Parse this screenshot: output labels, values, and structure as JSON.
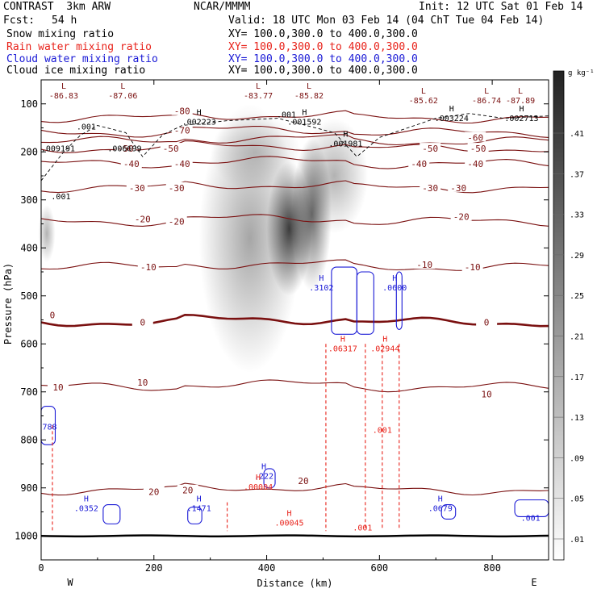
{
  "header": {
    "model": "CONTRAST  3km ARW",
    "center": "NCAR/MMMM",
    "init": "Init: 12 UTC Sat 01 Feb 14",
    "fcst_label": "Fcst:",
    "fcst_value": "54 h",
    "valid": "Valid: 18 UTC Mon 03 Feb 14 (04 ChT Tue 04 Feb 14)"
  },
  "legend": [
    {
      "label": "Snow mixing ratio",
      "xy": "XY= 100.0,300.0 to 400.0,300.0",
      "color": "#000000"
    },
    {
      "label": "Rain water mixing ratio",
      "xy": "XY= 100.0,300.0 to 400.0,300.0",
      "color": "#e8221a"
    },
    {
      "label": "Cloud water mixing ratio",
      "xy": "XY= 100.0,300.0 to 400.0,300.0",
      "color": "#1a1ad6"
    },
    {
      "label": "Cloud ice mixing ratio",
      "xy": "XY= 100.0,300.0 to 400.0,300.0",
      "color": "#000000"
    }
  ],
  "chart_data": {
    "type": "cross-section contour",
    "xlabel": "Distance (km)",
    "ylabel": "Pressure (hPa)",
    "xlim": [
      0,
      900
    ],
    "ylim": [
      1050,
      50
    ],
    "x_ticks": [
      0,
      200,
      400,
      600,
      800
    ],
    "y_ticks": [
      100,
      200,
      300,
      400,
      500,
      600,
      700,
      800,
      900,
      1000
    ],
    "x_end_labels": {
      "left": "W",
      "right": "E"
    },
    "colorbar": {
      "unit": "g kg⁻¹",
      "ticks": [
        ".41",
        ".37",
        ".33",
        ".29",
        ".25",
        ".21",
        ".17",
        ".13",
        ".09",
        ".05",
        ".01"
      ]
    },
    "temperature_contours": [
      {
        "level": -80,
        "labels": [
          {
            "x": 250,
            "p": 115,
            "text": "-80"
          }
        ]
      },
      {
        "level": -70,
        "labels": [
          {
            "x": 250,
            "p": 155,
            "text": "-70"
          }
        ]
      },
      {
        "level": -60,
        "labels": [
          {
            "x": 770,
            "p": 170,
            "text": "-60"
          }
        ]
      },
      {
        "level": -50,
        "labels": [
          {
            "x": 150,
            "p": 193,
            "text": "-50"
          },
          {
            "x": 230,
            "p": 193,
            "text": "-50"
          },
          {
            "x": 690,
            "p": 193,
            "text": "-50"
          },
          {
            "x": 775,
            "p": 193,
            "text": "-50"
          }
        ]
      },
      {
        "level": -40,
        "labels": [
          {
            "x": 160,
            "p": 225,
            "text": "-40"
          },
          {
            "x": 250,
            "p": 225,
            "text": "-40"
          },
          {
            "x": 670,
            "p": 225,
            "text": "-40"
          },
          {
            "x": 770,
            "p": 225,
            "text": "-40"
          }
        ]
      },
      {
        "level": -30,
        "labels": [
          {
            "x": 170,
            "p": 275,
            "text": "-30"
          },
          {
            "x": 240,
            "p": 275,
            "text": "-30"
          },
          {
            "x": 690,
            "p": 275,
            "text": "-30"
          },
          {
            "x": 740,
            "p": 275,
            "text": "-30"
          }
        ]
      },
      {
        "level": -20,
        "labels": [
          {
            "x": 180,
            "p": 340,
            "text": "-20"
          },
          {
            "x": 240,
            "p": 345,
            "text": "-20"
          },
          {
            "x": 745,
            "p": 335,
            "text": "-20"
          }
        ]
      },
      {
        "level": -10,
        "labels": [
          {
            "x": 190,
            "p": 440,
            "text": "-10"
          },
          {
            "x": 680,
            "p": 435,
            "text": "-10"
          },
          {
            "x": 765,
            "p": 440,
            "text": "-10"
          }
        ]
      },
      {
        "level": 0,
        "labels": [
          {
            "x": 20,
            "p": 540,
            "text": "0"
          },
          {
            "x": 180,
            "p": 555,
            "text": "0"
          },
          {
            "x": 790,
            "p": 555,
            "text": "0"
          }
        ]
      },
      {
        "level": 10,
        "labels": [
          {
            "x": 30,
            "p": 690,
            "text": "10"
          },
          {
            "x": 180,
            "p": 680,
            "text": "10"
          },
          {
            "x": 790,
            "p": 705,
            "text": "10"
          }
        ]
      },
      {
        "level": 20,
        "labels": [
          {
            "x": 200,
            "p": 908,
            "text": "20"
          },
          {
            "x": 260,
            "p": 905,
            "text": "20"
          },
          {
            "x": 465,
            "p": 885,
            "text": "20"
          }
        ]
      }
    ],
    "extrema_labels": [
      {
        "x": 40,
        "p": 85,
        "letter": "L",
        "value": "-86.83",
        "color": "#7a1010"
      },
      {
        "x": 145,
        "p": 85,
        "letter": "L",
        "value": "-87.06",
        "color": "#7a1010"
      },
      {
        "x": 385,
        "p": 85,
        "letter": "L",
        "value": "-83.77",
        "color": "#7a1010"
      },
      {
        "x": 475,
        "p": 85,
        "letter": "L",
        "value": "-85.82",
        "color": "#7a1010"
      },
      {
        "x": 678,
        "p": 95,
        "letter": "L",
        "value": "-85.62",
        "color": "#7a1010"
      },
      {
        "x": 790,
        "p": 95,
        "letter": "L",
        "value": "-86.74",
        "color": "#7a1010"
      },
      {
        "x": 850,
        "p": 95,
        "letter": "L",
        "value": "-87.89",
        "color": "#7a1010"
      },
      {
        "x": 80,
        "p": 150,
        "letter": "",
        "value": ".001",
        "color": "#000000"
      },
      {
        "x": 280,
        "p": 140,
        "letter": "H",
        "value": ".002223",
        "color": "#000000"
      },
      {
        "x": 467,
        "p": 140,
        "letter": "H",
        "value": ".001592",
        "color": "#000000"
      },
      {
        "x": 435,
        "p": 125,
        "letter": "",
        "value": ".001",
        "color": "#000000"
      },
      {
        "x": 728,
        "p": 132,
        "letter": "H",
        "value": ".003224",
        "color": "#000000"
      },
      {
        "x": 852,
        "p": 132,
        "letter": "H",
        "value": ".002713",
        "color": "#000000"
      },
      {
        "x": 30,
        "p": 195,
        "letter": "",
        "value": ".009191",
        "color": "#000000"
      },
      {
        "x": 148,
        "p": 195,
        "letter": "",
        "value": ".006699",
        "color": "#000000"
      },
      {
        "x": 540,
        "p": 185,
        "letter": "H",
        "value": ".001981",
        "color": "#000000"
      },
      {
        "x": 35,
        "p": 295,
        "letter": "",
        "value": ".001",
        "color": "#000000"
      },
      {
        "x": 497,
        "p": 485,
        "letter": "H",
        "value": ".3102",
        "color": "#1a1ad6"
      },
      {
        "x": 627,
        "p": 485,
        "letter": "H",
        "value": ".0600",
        "color": "#1a1ad6"
      },
      {
        "x": 535,
        "p": 612,
        "letter": "H",
        "value": ".06317",
        "color": "#e8221a"
      },
      {
        "x": 610,
        "p": 612,
        "letter": "H",
        "value": ".02944",
        "color": "#e8221a"
      },
      {
        "x": 605,
        "p": 782,
        "letter": "",
        "value": ".001",
        "color": "#e8221a"
      },
      {
        "x": 395,
        "p": 878,
        "letter": "H",
        "value": ".222",
        "color": "#1a1ad6"
      },
      {
        "x": 385,
        "p": 900,
        "letter": "H",
        "value": ".00004",
        "color": "#e8221a"
      },
      {
        "x": 80,
        "p": 945,
        "letter": "H",
        "value": ".0352",
        "color": "#1a1ad6"
      },
      {
        "x": 280,
        "p": 945,
        "letter": "H",
        "value": ".1471",
        "color": "#1a1ad6"
      },
      {
        "x": 708,
        "p": 945,
        "letter": "H",
        "value": ".0679",
        "color": "#1a1ad6"
      },
      {
        "x": 868,
        "p": 965,
        "letter": "",
        "value": ".001",
        "color": "#1a1ad6"
      },
      {
        "x": 440,
        "p": 975,
        "letter": "H",
        "value": ".00045",
        "color": "#e8221a"
      },
      {
        "x": 570,
        "p": 985,
        "letter": "",
        "value": ".001",
        "color": "#e8221a"
      },
      {
        "x": 15,
        "p": 775,
        "letter": "",
        "value": "788",
        "color": "#1a1ad6"
      }
    ],
    "cloud_ice_blobs": [
      {
        "x": 370,
        "p": 380,
        "rx": 90,
        "rp": 280,
        "intensity": 0.35
      },
      {
        "x": 440,
        "p": 360,
        "rx": 40,
        "rp": 140,
        "intensity": 0.75
      },
      {
        "x": 480,
        "p": 330,
        "rx": 35,
        "rp": 160,
        "intensity": 0.6
      },
      {
        "x": 520,
        "p": 250,
        "rx": 60,
        "rp": 120,
        "intensity": 0.3
      },
      {
        "x": 10,
        "p": 370,
        "rx": 15,
        "rp": 60,
        "intensity": 0.3
      },
      {
        "x": 380,
        "p": 200,
        "rx": 80,
        "rp": 80,
        "intensity": 0.2
      }
    ]
  }
}
